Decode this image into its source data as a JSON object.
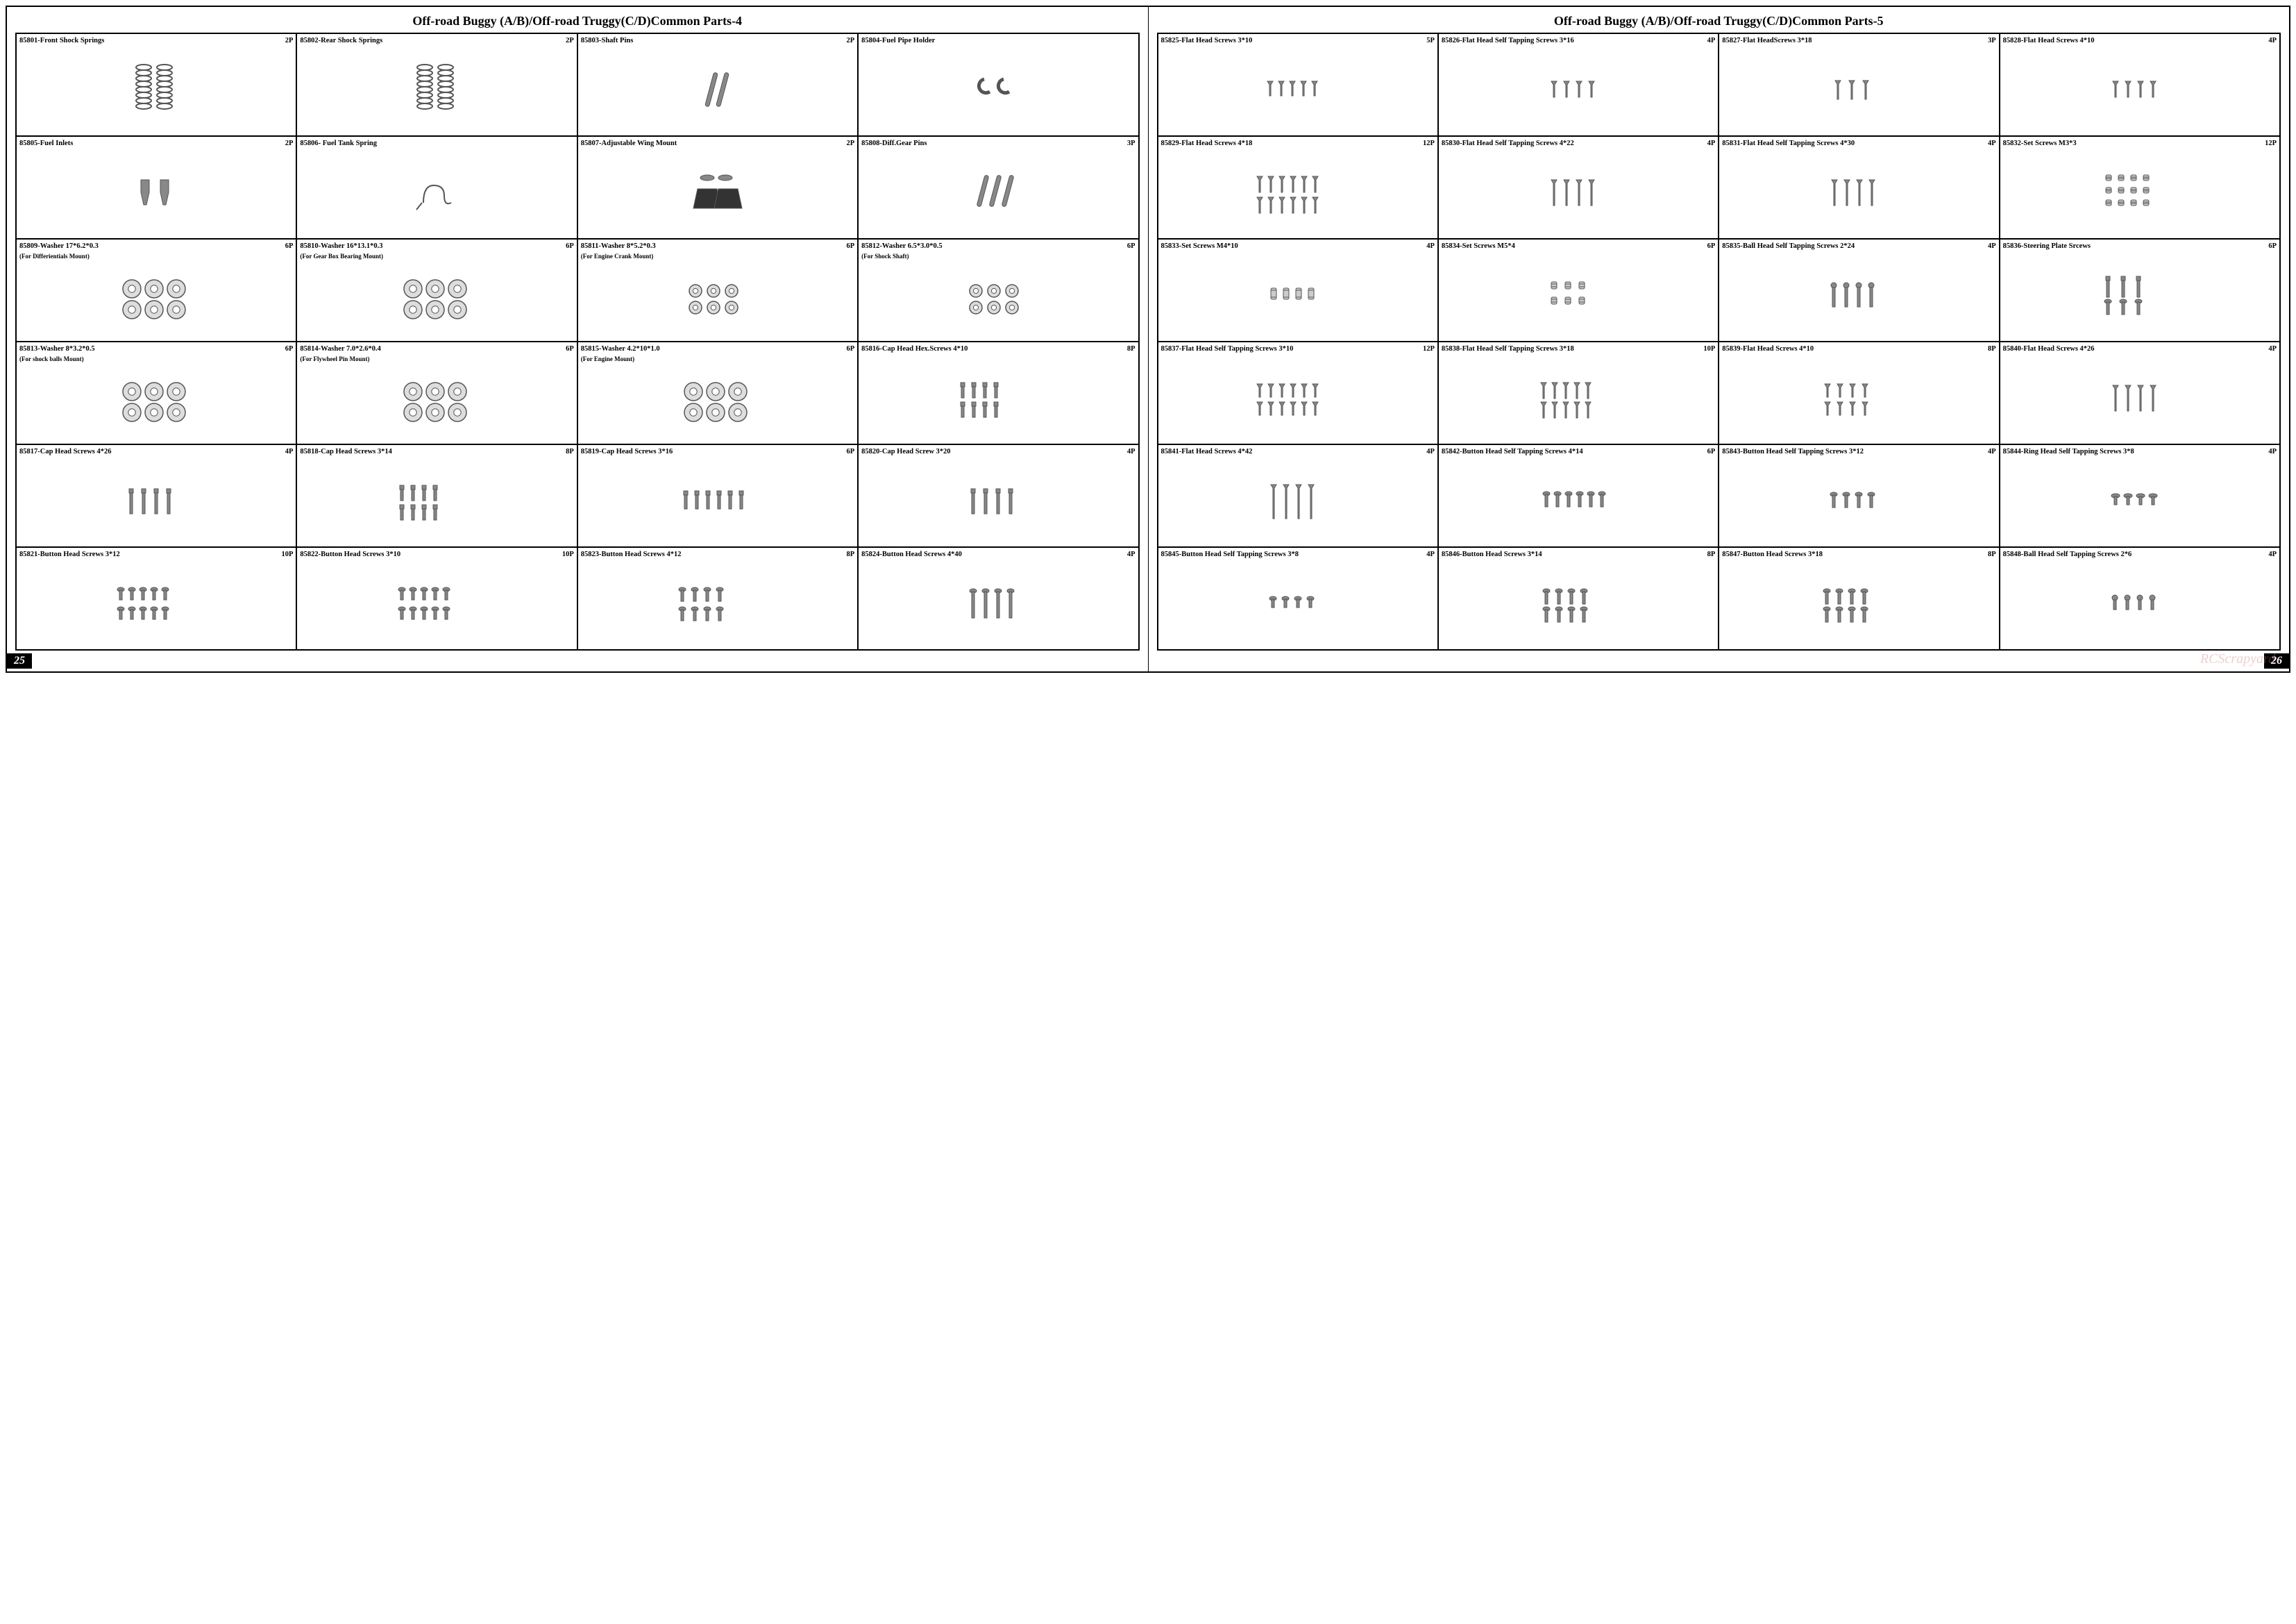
{
  "page_left": {
    "title": "Off-road Buggy (A/B)/Off-road Truggy(C/D)Common Parts-4",
    "number": "25",
    "cells": [
      {
        "partno": "85801-Front Shock Springs",
        "qty": "2P",
        "sub": "",
        "icon": "spring2"
      },
      {
        "partno": "85802-Rear Shock Springs",
        "qty": "2P",
        "sub": "",
        "icon": "spring2"
      },
      {
        "partno": "85803-Shaft Pins",
        "qty": "2P",
        "sub": "",
        "icon": "pin2"
      },
      {
        "partno": "85804-Fuel Pipe Holder",
        "qty": "",
        "sub": "",
        "icon": "hook2"
      },
      {
        "partno": "85805-Fuel Inlets",
        "qty": "2P",
        "sub": "",
        "icon": "inlet2"
      },
      {
        "partno": "85806- Fuel Tank Spring",
        "qty": "",
        "sub": "",
        "icon": "wirespr"
      },
      {
        "partno": "85807-Adjustable Wing Mount",
        "qty": "2P",
        "sub": "",
        "icon": "wingmount"
      },
      {
        "partno": "85808-Diff.Gear Pins",
        "qty": "3P",
        "sub": "",
        "icon": "pin3"
      },
      {
        "partno": "85809-Washer 17*6.2*0.3",
        "qty": "6P",
        "sub": "(For Differientials Mount)",
        "icon": "washer6"
      },
      {
        "partno": "85810-Washer 16*13.1*0.3",
        "qty": "6P",
        "sub": "(For Gear Box Bearing Mount)",
        "icon": "washer6"
      },
      {
        "partno": "85811-Washer 8*5.2*0.3",
        "qty": "6P",
        "sub": "(For  Engine Crank Mount)",
        "icon": "washer6s"
      },
      {
        "partno": "85812-Washer 6.5*3.0*0.5",
        "qty": "6P",
        "sub": "(For  Shock Shaft)",
        "icon": "washer6s"
      },
      {
        "partno": "85813-Washer 8*3.2*0.5",
        "qty": "6P",
        "sub": "(For shock balls Mount)",
        "icon": "washer6"
      },
      {
        "partno": "85814-Washer 7.0*2.6*0.4",
        "qty": "6P",
        "sub": "(For Flywheel Pin Mount)",
        "icon": "washer6"
      },
      {
        "partno": "85815-Washer 4.2*10*1.0",
        "qty": "6P",
        "sub": "(For Engine Mount)",
        "icon": "washer6"
      },
      {
        "partno": "85816-Cap Head Hex.Screws 4*10",
        "qty": "8P",
        "sub": "",
        "icon": "capscrew8"
      },
      {
        "partno": "85817-Cap  Head Screws 4*26",
        "qty": "4P",
        "sub": "",
        "icon": "capscrew4l"
      },
      {
        "partno": "85818-Cap Head Screws 3*14",
        "qty": "8P",
        "sub": "",
        "icon": "capscrew8"
      },
      {
        "partno": "85819-Cap Head Screws 3*16",
        "qty": "6P",
        "sub": "",
        "icon": "capscrew6"
      },
      {
        "partno": "85820-Cap Head Screw 3*20",
        "qty": "4P",
        "sub": "",
        "icon": "capscrew4l"
      },
      {
        "partno": "85821-Button Head Screws 3*12",
        "qty": "10P",
        "sub": "",
        "icon": "btnscrew10"
      },
      {
        "partno": "85822-Button Head Screws 3*10",
        "qty": "10P",
        "sub": "",
        "icon": "btnscrew10"
      },
      {
        "partno": "85823-Button Head Screws 4*12",
        "qty": "8P",
        "sub": "",
        "icon": "btnscrew8"
      },
      {
        "partno": "85824-Button Head Screws 4*40",
        "qty": "4P",
        "sub": "",
        "icon": "btnscrew4l"
      }
    ]
  },
  "page_right": {
    "title": "Off-road Buggy (A/B)/Off-road Truggy(C/D)Common Parts-5",
    "number": "26",
    "cells": [
      {
        "partno": "85825-Flat Head Screws 3*10",
        "qty": "5P",
        "sub": "",
        "icon": "flat5"
      },
      {
        "partno": "85826-Flat Head Self Tapping  Screws 3*16",
        "qty": "4P",
        "sub": "",
        "icon": "flat4"
      },
      {
        "partno": "85827-Flat HeadScrews 3*18",
        "qty": "3P",
        "sub": "",
        "icon": "flat3"
      },
      {
        "partno": "85828-Flat Head Screws 4*10",
        "qty": "4P",
        "sub": "",
        "icon": "flat4"
      },
      {
        "partno": "85829-Flat Head Screws 4*18",
        "qty": "12P",
        "sub": "",
        "icon": "flat12"
      },
      {
        "partno": "85830-Flat Head Self Tapping Screws 4*22",
        "qty": "4P",
        "sub": "",
        "icon": "flat4l"
      },
      {
        "partno": "85831-Flat Head Self Tapping Screws  4*30",
        "qty": "4P",
        "sub": "",
        "icon": "flat4l"
      },
      {
        "partno": "85832-Set  Screws M3*3",
        "qty": "12P",
        "sub": "",
        "icon": "set12"
      },
      {
        "partno": "85833-Set Screws M4*10",
        "qty": "4P",
        "sub": "",
        "icon": "set4l"
      },
      {
        "partno": "85834-Set  Screws  M5*4",
        "qty": "6P",
        "sub": "",
        "icon": "set6"
      },
      {
        "partno": "85835-Ball Head Self Tapping Screws  2*24",
        "qty": "4P",
        "sub": "",
        "icon": "ball4"
      },
      {
        "partno": "85836-Steering Plate Srcews",
        "qty": "6P",
        "sub": "",
        "icon": "steer6"
      },
      {
        "partno": "85837-Flat Head Self Tapping Screws  3*10",
        "qty": "12P",
        "sub": "",
        "icon": "flat12s"
      },
      {
        "partno": "85838-Flat Head  Self Tapping Screws    3*18",
        "qty": "10P",
        "sub": "",
        "icon": "flat10"
      },
      {
        "partno": "85839-Flat Head Screws 4*10",
        "qty": "8P",
        "sub": "",
        "icon": "flat8"
      },
      {
        "partno": "85840-Flat Head Screws  4*26",
        "qty": "4P",
        "sub": "",
        "icon": "flat4l"
      },
      {
        "partno": "85841-Flat Head Screws  4*42",
        "qty": "4P",
        "sub": "",
        "icon": "flat4xl"
      },
      {
        "partno": "85842-Button Head Self Tapping Screws 4*14",
        "qty": "6P",
        "sub": "",
        "icon": "btn6"
      },
      {
        "partno": "85843-Button  Head Self Tapping  Screws 3*12",
        "qty": "4P",
        "sub": "",
        "icon": "btn4"
      },
      {
        "partno": "85844-Ring Head Self Tapping Screws 3*8",
        "qty": "4P",
        "sub": "",
        "icon": "ring4"
      },
      {
        "partno": "85845-Button  Head Self Tapping Screws 3*8",
        "qty": "4P",
        "sub": "",
        "icon": "btn4s"
      },
      {
        "partno": "85846-Button Head Screws 3*14",
        "qty": "8P",
        "sub": "",
        "icon": "btn8"
      },
      {
        "partno": "85847-Button Head Screws 3*18",
        "qty": "8P",
        "sub": "",
        "icon": "btn8"
      },
      {
        "partno": "85848-Ball Head Self Tapping Screws 2*6",
        "qty": "4P",
        "sub": "",
        "icon": "ball4s"
      }
    ]
  },
  "watermark": "RCScrapyard",
  "colors": {
    "stroke": "#555555",
    "fill": "#888888",
    "border": "#000000"
  }
}
